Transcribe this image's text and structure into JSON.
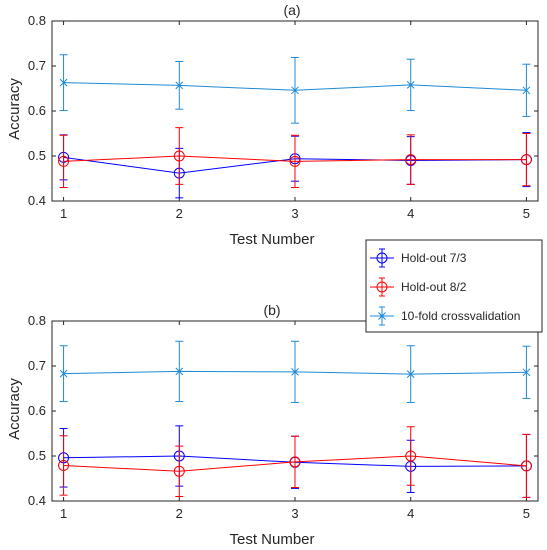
{
  "chart_data": [
    {
      "type": "line",
      "title": "(a)",
      "xlabel": "Test Number",
      "ylabel": "Accuracy",
      "x": [
        1,
        2,
        3,
        4,
        5
      ],
      "xticks": [
        "1",
        "2",
        "3",
        "4",
        "5"
      ],
      "xlim": [
        0.9,
        5.1
      ],
      "ylim": [
        0.4,
        0.8
      ],
      "yticks": [
        "0.4",
        "0.5",
        "0.6",
        "0.7",
        "0.8"
      ],
      "grid": false,
      "series": [
        {
          "name": "Hold-out 7/3",
          "color": "#0000ff",
          "marker": "circle",
          "values": [
            0.497,
            0.462,
            0.494,
            0.49,
            0.492
          ],
          "errors": [
            0.05,
            0.055,
            0.05,
            0.053,
            0.06
          ]
        },
        {
          "name": "Hold-out 8/2",
          "color": "#ff0000",
          "marker": "circle",
          "values": [
            0.488,
            0.5,
            0.488,
            0.492,
            0.492
          ],
          "errors": [
            0.058,
            0.063,
            0.058,
            0.055,
            0.058
          ]
        },
        {
          "name": "10-fold crossvalidation",
          "color": "#1f8ad8",
          "marker": "x",
          "values": [
            0.663,
            0.657,
            0.646,
            0.658,
            0.646
          ],
          "errors": [
            0.062,
            0.053,
            0.073,
            0.057,
            0.058
          ]
        }
      ]
    },
    {
      "type": "line",
      "title": "(b)",
      "xlabel": "Test Number",
      "ylabel": "Accuracy",
      "x": [
        1,
        2,
        3,
        4,
        5
      ],
      "xticks": [
        "1",
        "2",
        "3",
        "4",
        "5"
      ],
      "xlim": [
        0.9,
        5.1
      ],
      "ylim": [
        0.4,
        0.8
      ],
      "yticks": [
        "0.4",
        "0.5",
        "0.6",
        "0.7",
        "0.8"
      ],
      "grid": false,
      "series": [
        {
          "name": "Hold-out 7/3",
          "color": "#0000ff",
          "marker": "circle",
          "values": [
            0.496,
            0.5,
            0.486,
            0.477,
            0.478
          ],
          "errors": [
            0.065,
            0.067,
            0.058,
            0.058,
            0.07
          ]
        },
        {
          "name": "Hold-out 8/2",
          "color": "#ff0000",
          "marker": "circle",
          "values": [
            0.479,
            0.466,
            0.487,
            0.5,
            0.478
          ],
          "errors": [
            0.066,
            0.056,
            0.057,
            0.065,
            0.07
          ]
        },
        {
          "name": "10-fold crossvalidation",
          "color": "#1f8ad8",
          "marker": "x",
          "values": [
            0.683,
            0.688,
            0.687,
            0.682,
            0.686
          ],
          "errors": [
            0.062,
            0.067,
            0.068,
            0.063,
            0.058
          ]
        }
      ]
    }
  ],
  "legend": {
    "placement": "right-between-panels",
    "entries": [
      {
        "label": "Hold-out 7/3",
        "color": "#0000ff",
        "marker": "circle"
      },
      {
        "label": "Hold-out 8/2",
        "color": "#ff0000",
        "marker": "circle"
      },
      {
        "label": "10-fold crossvalidation",
        "color": "#1f8ad8",
        "marker": "x"
      }
    ]
  }
}
